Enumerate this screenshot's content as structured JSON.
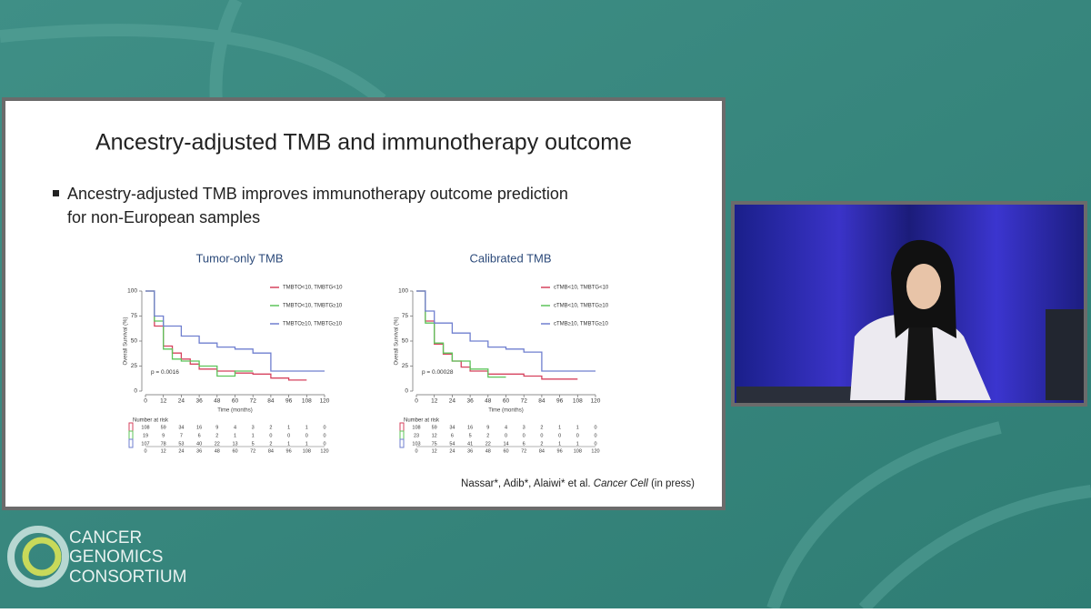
{
  "slide": {
    "title": "Ancestry-adjusted TMB and immunotherapy outcome",
    "bullet_lines": [
      "Ancestry-adjusted TMB improves immunotherapy outcome prediction",
      "for non-European samples"
    ],
    "citation_authors": "Nassar*, Adib*, Alaiwi* et al.",
    "citation_journal": "Cancer Cell",
    "citation_status": "(in press)"
  },
  "logo": {
    "lines": [
      "CANCER",
      "GENOMICS",
      "CONSORTIUM"
    ]
  },
  "chart_data": [
    {
      "type": "line",
      "step": true,
      "title": "Tumor-only TMB",
      "xlabel": "Time (months)",
      "ylabel": "Overall Survival (%)",
      "annotation": "p = 0.0016",
      "xlim": [
        0,
        120
      ],
      "xticks": [
        0,
        12,
        24,
        36,
        48,
        60,
        72,
        84,
        96,
        108,
        120
      ],
      "ylim": [
        0,
        100
      ],
      "yticks": [
        0,
        25,
        50,
        75,
        100
      ],
      "series": [
        {
          "name": "TMBTO<10, TMBTG<10",
          "color": "#d6425e",
          "x": [
            0,
            6,
            12,
            18,
            24,
            30,
            36,
            48,
            60,
            72,
            84,
            96,
            108
          ],
          "values": [
            100,
            65,
            45,
            38,
            32,
            27,
            22,
            20,
            18,
            17,
            13,
            11,
            11
          ]
        },
        {
          "name": "TMBTO<10, TMBTG≥10",
          "color": "#5cc45a",
          "x": [
            0,
            6,
            12,
            18,
            24,
            36,
            48,
            60,
            72
          ],
          "values": [
            100,
            70,
            42,
            32,
            30,
            25,
            15,
            20,
            20
          ]
        },
        {
          "name": "TMBTO≥10, TMBTG≥10",
          "color": "#6f7fcf",
          "x": [
            0,
            6,
            12,
            24,
            36,
            48,
            60,
            72,
            84,
            96,
            108,
            120
          ],
          "values": [
            100,
            75,
            65,
            55,
            48,
            44,
            42,
            38,
            20,
            20,
            20,
            20
          ]
        }
      ],
      "risk_table": {
        "title": "Number at risk",
        "rows": [
          [
            108,
            59,
            34,
            16,
            9,
            4,
            3,
            2,
            1,
            1,
            0
          ],
          [
            19,
            9,
            7,
            6,
            2,
            1,
            1,
            0,
            0,
            0,
            0
          ],
          [
            107,
            78,
            53,
            40,
            22,
            13,
            5,
            2,
            1,
            1,
            0
          ]
        ]
      }
    },
    {
      "type": "line",
      "step": true,
      "title": "Calibrated TMB",
      "xlabel": "Time (months)",
      "ylabel": "Overall Survival (%)",
      "annotation": "p = 0.00028",
      "xlim": [
        0,
        120
      ],
      "xticks": [
        0,
        12,
        24,
        36,
        48,
        60,
        72,
        84,
        96,
        108,
        120
      ],
      "ylim": [
        0,
        100
      ],
      "yticks": [
        0,
        25,
        50,
        75,
        100
      ],
      "series": [
        {
          "name": "cTMB<10, TMBTG<10",
          "color": "#d6425e",
          "x": [
            0,
            6,
            12,
            18,
            24,
            30,
            36,
            48,
            60,
            72,
            84,
            108
          ],
          "values": [
            100,
            70,
            47,
            37,
            30,
            24,
            20,
            17,
            17,
            15,
            12,
            12
          ]
        },
        {
          "name": "cTMB<10, TMBTG≥10",
          "color": "#5cc45a",
          "x": [
            0,
            6,
            12,
            18,
            24,
            36,
            48,
            60
          ],
          "values": [
            100,
            68,
            48,
            38,
            30,
            22,
            14,
            14
          ]
        },
        {
          "name": "cTMB≥10, TMBTG≥10",
          "color": "#6f7fcf",
          "x": [
            0,
            6,
            12,
            24,
            36,
            48,
            60,
            72,
            84,
            96,
            108,
            120
          ],
          "values": [
            100,
            80,
            68,
            58,
            50,
            44,
            42,
            39,
            20,
            20,
            20,
            20
          ]
        }
      ],
      "risk_table": {
        "title": "Number at risk",
        "rows": [
          [
            108,
            59,
            34,
            16,
            9,
            4,
            3,
            2,
            1,
            1,
            0
          ],
          [
            23,
            12,
            6,
            5,
            2,
            0,
            0,
            0,
            0,
            0,
            0
          ],
          [
            103,
            75,
            54,
            41,
            22,
            14,
            6,
            2,
            1,
            1,
            0
          ]
        ]
      }
    }
  ]
}
